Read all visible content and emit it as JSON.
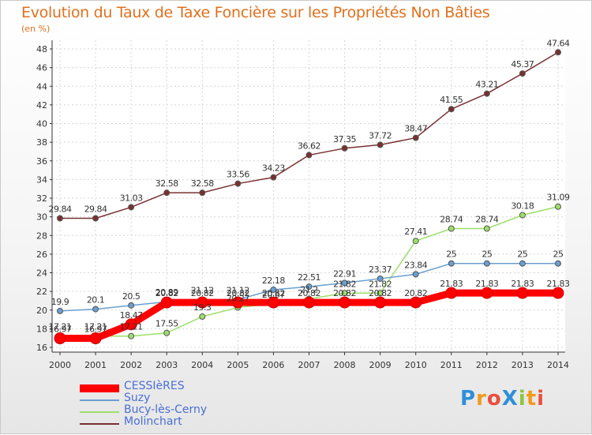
{
  "chart_data": {
    "type": "line",
    "title": "Evolution du Taux de Taxe Foncière sur les Propriétés Non Bâties",
    "subtitle": "(en %)",
    "xlabel": "",
    "ylabel": "",
    "x": [
      "2000",
      "2001",
      "2002",
      "2003",
      "2004",
      "2005",
      "2006",
      "2007",
      "2008",
      "2009",
      "2010",
      "2011",
      "2012",
      "2013",
      "2014"
    ],
    "ylim": [
      16,
      48
    ],
    "yticks": [
      16,
      18,
      20,
      22,
      24,
      26,
      28,
      30,
      32,
      34,
      36,
      38,
      40,
      42,
      44,
      46,
      48
    ],
    "grid": true,
    "legend_position": "bottom-left",
    "series": [
      {
        "name": "CESSIèRES",
        "color": "#ff0000",
        "values": [
          16.97,
          16.97,
          18.47,
          20.82,
          20.82,
          20.82,
          20.82,
          20.82,
          20.82,
          20.82,
          20.82,
          21.83,
          21.83,
          21.83,
          21.83
        ]
      },
      {
        "name": "Suzy",
        "color": "#6a9fd0",
        "values": [
          19.9,
          20.1,
          20.5,
          20.89,
          21.12,
          21.12,
          22.18,
          22.51,
          22.91,
          23.37,
          23.84,
          25,
          25,
          25,
          25
        ]
      },
      {
        "name": "Bucy-lès-Cerny",
        "color": "#9ddf6a",
        "values": [
          17.21,
          17.21,
          17.21,
          17.55,
          19.3,
          20.27,
          20.67,
          21.2,
          21.82,
          21.82,
          27.41,
          28.74,
          28.74,
          30.18,
          31.09
        ]
      },
      {
        "name": "Molinchart",
        "color": "#7a3030",
        "values": [
          29.84,
          29.84,
          31.03,
          32.58,
          32.58,
          33.56,
          34.23,
          36.62,
          37.35,
          37.72,
          38.47,
          41.55,
          43.21,
          45.37,
          47.64
        ]
      }
    ],
    "point_labels": {
      "CESSIèRES": [
        "16.97",
        "16.97",
        "18.47",
        "20.82",
        "20.82",
        "20.82",
        "20.82",
        "20.82",
        "20.82",
        "20.82",
        "20.82",
        "21.83",
        "21.83",
        "21.83",
        "21.83"
      ],
      "Suzy": [
        "19.9",
        "20.1",
        "20.5",
        "20.89",
        "21.12",
        "21.12",
        "22.18",
        "22.51",
        "22.91",
        "23.37",
        "23.84",
        "25",
        "25",
        "25",
        "25"
      ],
      "Bucy-lès-Cerny": [
        "17.21",
        "17.21",
        "17.21",
        "17.55",
        "19.3",
        "20.27",
        "20.67",
        "21.2",
        "21.82",
        "21.82",
        "27.41",
        "28.74",
        "28.74",
        "30.18",
        "31.09"
      ],
      "Molinchart": [
        "29.84",
        "29.84",
        "31.03",
        "32.58",
        "32.58",
        "33.56",
        "34.23",
        "36.62",
        "37.35",
        "37.72",
        "38.47",
        "41.55",
        "43.21",
        "45.37",
        "47.64"
      ]
    }
  },
  "logo_text": "ProXiti"
}
